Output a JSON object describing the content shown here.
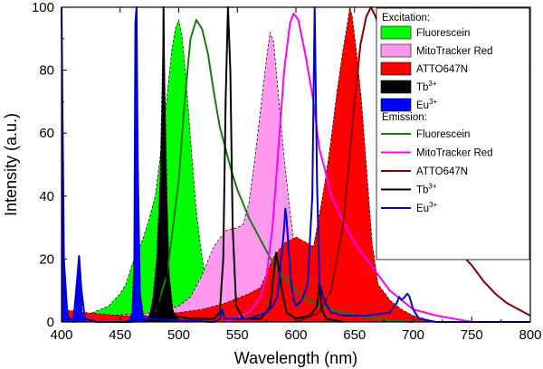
{
  "chart_data": {
    "type": "area",
    "xlabel": "Wavelength (nm)",
    "ylabel": "Intensity (a.u.)",
    "xlim": [
      400,
      800
    ],
    "ylim": [
      0,
      100
    ],
    "x_ticks": [
      400,
      450,
      500,
      550,
      600,
      650,
      700,
      750,
      800
    ],
    "y_ticks": [
      0,
      20,
      40,
      60,
      80,
      100
    ],
    "legend_position": "top-right",
    "legend_groups": [
      {
        "title": "Excitation:",
        "entries": [
          {
            "label": "Fluorescein",
            "sup": ""
          },
          {
            "label": "MitoTracker Red",
            "sup": ""
          },
          {
            "label": "ATTO647N",
            "sup": ""
          },
          {
            "label": "Tb",
            "sup": "3+"
          },
          {
            "label": "Eu",
            "sup": "3+"
          }
        ]
      },
      {
        "title": "Emission:",
        "entries": [
          {
            "label": "Fluorescein",
            "sup": ""
          },
          {
            "label": "MitoTracker Red",
            "sup": ""
          },
          {
            "label": "ATTO647N",
            "sup": ""
          },
          {
            "label": "Tb",
            "sup": "3+"
          },
          {
            "label": "Eu",
            "sup": "3+"
          }
        ]
      }
    ],
    "excitation": [
      {
        "name": "Fluorescein",
        "fill": "#00ff00",
        "points": [
          [
            400,
            0
          ],
          [
            420,
            2
          ],
          [
            440,
            5
          ],
          [
            450,
            9
          ],
          [
            455,
            12
          ],
          [
            460,
            18
          ],
          [
            465,
            22
          ],
          [
            470,
            27
          ],
          [
            475,
            33
          ],
          [
            480,
            40
          ],
          [
            485,
            55
          ],
          [
            490,
            72
          ],
          [
            494,
            86
          ],
          [
            497,
            93
          ],
          [
            500,
            96
          ],
          [
            503,
            90
          ],
          [
            506,
            78
          ],
          [
            510,
            58
          ],
          [
            515,
            35
          ],
          [
            520,
            20
          ],
          [
            525,
            10
          ],
          [
            530,
            5
          ],
          [
            540,
            2
          ],
          [
            560,
            0
          ]
        ]
      },
      {
        "name": "MitoTracker Red",
        "fill": "#ff99ee",
        "points": [
          [
            440,
            2
          ],
          [
            480,
            3
          ],
          [
            500,
            5
          ],
          [
            510,
            8
          ],
          [
            520,
            15
          ],
          [
            530,
            24
          ],
          [
            540,
            29
          ],
          [
            550,
            30
          ],
          [
            555,
            31
          ],
          [
            560,
            38
          ],
          [
            565,
            52
          ],
          [
            570,
            68
          ],
          [
            575,
            84
          ],
          [
            578,
            92
          ],
          [
            581,
            89
          ],
          [
            585,
            72
          ],
          [
            590,
            52
          ],
          [
            595,
            35
          ],
          [
            600,
            20
          ],
          [
            605,
            12
          ],
          [
            610,
            6
          ],
          [
            620,
            2
          ],
          [
            640,
            0
          ]
        ]
      },
      {
        "name": "ATTO647N",
        "fill": "#ff0000",
        "points": [
          [
            400,
            4
          ],
          [
            420,
            3
          ],
          [
            450,
            2
          ],
          [
            480,
            2
          ],
          [
            500,
            3
          ],
          [
            520,
            4
          ],
          [
            540,
            6
          ],
          [
            560,
            9
          ],
          [
            570,
            11
          ],
          [
            580,
            20
          ],
          [
            590,
            25
          ],
          [
            600,
            27
          ],
          [
            610,
            25
          ],
          [
            615,
            24
          ],
          [
            620,
            34
          ],
          [
            625,
            45
          ],
          [
            630,
            58
          ],
          [
            635,
            73
          ],
          [
            640,
            86
          ],
          [
            644,
            95
          ],
          [
            646,
            100
          ],
          [
            648,
            97
          ],
          [
            652,
            85
          ],
          [
            656,
            70
          ],
          [
            660,
            50
          ],
          [
            665,
            25
          ],
          [
            670,
            12
          ],
          [
            680,
            7
          ],
          [
            690,
            4
          ],
          [
            700,
            2
          ],
          [
            720,
            0
          ]
        ]
      },
      {
        "name": "Tb3+",
        "fill": "#000000",
        "points": [
          [
            470,
            0
          ],
          [
            475,
            2
          ],
          [
            478,
            8
          ],
          [
            481,
            20
          ],
          [
            484,
            45
          ],
          [
            486,
            80
          ],
          [
            487,
            95
          ],
          [
            488,
            80
          ],
          [
            490,
            40
          ],
          [
            492,
            15
          ],
          [
            495,
            4
          ],
          [
            500,
            0
          ]
        ]
      },
      {
        "name": "Eu3+",
        "fill": "#0000ff",
        "points": [
          [
            400,
            100
          ],
          [
            401,
            40
          ],
          [
            403,
            10
          ],
          [
            406,
            1
          ],
          [
            410,
            0
          ],
          [
            412,
            4
          ],
          [
            414,
            16
          ],
          [
            415,
            21
          ],
          [
            416,
            14
          ],
          [
            418,
            2
          ],
          [
            422,
            0
          ],
          [
            455,
            0
          ],
          [
            460,
            2
          ],
          [
            462,
            25
          ],
          [
            463,
            90
          ],
          [
            464,
            100
          ],
          [
            465,
            60
          ],
          [
            467,
            10
          ],
          [
            470,
            2
          ],
          [
            475,
            0
          ]
        ]
      }
    ],
    "emission": [
      {
        "name": "Fluorescein",
        "color": "#1a7a1a",
        "points": [
          [
            480,
            3
          ],
          [
            490,
            15
          ],
          [
            500,
            45
          ],
          [
            505,
            70
          ],
          [
            510,
            90
          ],
          [
            515,
            96
          ],
          [
            520,
            93
          ],
          [
            525,
            85
          ],
          [
            530,
            73
          ],
          [
            535,
            62
          ],
          [
            540,
            55
          ],
          [
            545,
            48
          ],
          [
            550,
            42
          ],
          [
            560,
            33
          ],
          [
            570,
            26
          ],
          [
            580,
            19
          ],
          [
            590,
            14
          ],
          [
            600,
            10
          ],
          [
            610,
            7
          ],
          [
            620,
            5
          ],
          [
            640,
            3
          ],
          [
            660,
            1.5
          ],
          [
            680,
            0.5
          ],
          [
            700,
            0
          ]
        ]
      },
      {
        "name": "MitoTracker Red",
        "color": "#ff00ff",
        "points": [
          [
            540,
            0
          ],
          [
            560,
            3
          ],
          [
            570,
            8
          ],
          [
            575,
            15
          ],
          [
            580,
            30
          ],
          [
            585,
            55
          ],
          [
            590,
            80
          ],
          [
            595,
            95
          ],
          [
            598,
            98
          ],
          [
            602,
            96
          ],
          [
            608,
            85
          ],
          [
            615,
            70
          ],
          [
            620,
            55
          ],
          [
            625,
            48
          ],
          [
            630,
            40
          ],
          [
            640,
            32
          ],
          [
            650,
            25
          ],
          [
            660,
            20
          ],
          [
            670,
            15
          ],
          [
            680,
            10
          ],
          [
            690,
            7
          ],
          [
            700,
            4
          ],
          [
            720,
            2
          ],
          [
            750,
            0
          ]
        ]
      },
      {
        "name": "ATTO647N",
        "color": "#800000",
        "points": [
          [
            600,
            0
          ],
          [
            620,
            3
          ],
          [
            630,
            10
          ],
          [
            640,
            30
          ],
          [
            648,
            62
          ],
          [
            655,
            88
          ],
          [
            660,
            97
          ],
          [
            664,
            100
          ],
          [
            668,
            97
          ],
          [
            675,
            88
          ],
          [
            680,
            75
          ],
          [
            690,
            60
          ],
          [
            695,
            52
          ],
          [
            700,
            45
          ],
          [
            705,
            40
          ],
          [
            710,
            36
          ],
          [
            715,
            32
          ],
          [
            720,
            29
          ],
          [
            730,
            26
          ],
          [
            740,
            22
          ],
          [
            750,
            18
          ],
          [
            760,
            13
          ],
          [
            770,
            9
          ],
          [
            780,
            6
          ],
          [
            790,
            4
          ],
          [
            800,
            2
          ]
        ]
      },
      {
        "name": "Tb3+",
        "color": "#000000",
        "points": [
          [
            470,
            0
          ],
          [
            480,
            1
          ],
          [
            484,
            10
          ],
          [
            486,
            40
          ],
          [
            487,
            100
          ],
          [
            488,
            55
          ],
          [
            490,
            12
          ],
          [
            494,
            2
          ],
          [
            510,
            1
          ],
          [
            530,
            1
          ],
          [
            535,
            3
          ],
          [
            538,
            20
          ],
          [
            540,
            70
          ],
          [
            542,
            100
          ],
          [
            544,
            80
          ],
          [
            546,
            30
          ],
          [
            549,
            5
          ],
          [
            555,
            1
          ],
          [
            570,
            1
          ],
          [
            578,
            5
          ],
          [
            581,
            15
          ],
          [
            583,
            22
          ],
          [
            585,
            18
          ],
          [
            588,
            10
          ],
          [
            592,
            3
          ],
          [
            600,
            1
          ],
          [
            612,
            2
          ],
          [
            618,
            5
          ],
          [
            620,
            12
          ],
          [
            622,
            4
          ],
          [
            626,
            1
          ],
          [
            640,
            0
          ]
        ]
      },
      {
        "name": "Eu3+",
        "color": "#0000cc",
        "points": [
          [
            400,
            100
          ],
          [
            402,
            20
          ],
          [
            405,
            2
          ],
          [
            410,
            0
          ],
          [
            413,
            12
          ],
          [
            415,
            21
          ],
          [
            417,
            10
          ],
          [
            420,
            1
          ],
          [
            430,
            0
          ],
          [
            460,
            0
          ],
          [
            462,
            10
          ],
          [
            463,
            95
          ],
          [
            464,
            100
          ],
          [
            465,
            50
          ],
          [
            467,
            5
          ],
          [
            470,
            1
          ],
          [
            530,
            0
          ],
          [
            535,
            1
          ],
          [
            537,
            4
          ],
          [
            539,
            1
          ],
          [
            560,
            1
          ],
          [
            575,
            3
          ],
          [
            580,
            5
          ],
          [
            584,
            8
          ],
          [
            586,
            15
          ],
          [
            588,
            22
          ],
          [
            590,
            30
          ],
          [
            591,
            36
          ],
          [
            592,
            33
          ],
          [
            594,
            22
          ],
          [
            596,
            12
          ],
          [
            598,
            7
          ],
          [
            600,
            5
          ],
          [
            605,
            7
          ],
          [
            610,
            12
          ],
          [
            614,
            40
          ],
          [
            616,
            100
          ],
          [
            618,
            45
          ],
          [
            620,
            12
          ],
          [
            625,
            6
          ],
          [
            630,
            3
          ],
          [
            640,
            2
          ],
          [
            660,
            2
          ],
          [
            680,
            3
          ],
          [
            686,
            6
          ],
          [
            688,
            8
          ],
          [
            690,
            7
          ],
          [
            693,
            8
          ],
          [
            695,
            9
          ],
          [
            697,
            8
          ],
          [
            700,
            4
          ],
          [
            705,
            1
          ],
          [
            720,
            0
          ],
          [
            800,
            0
          ]
        ]
      }
    ]
  }
}
